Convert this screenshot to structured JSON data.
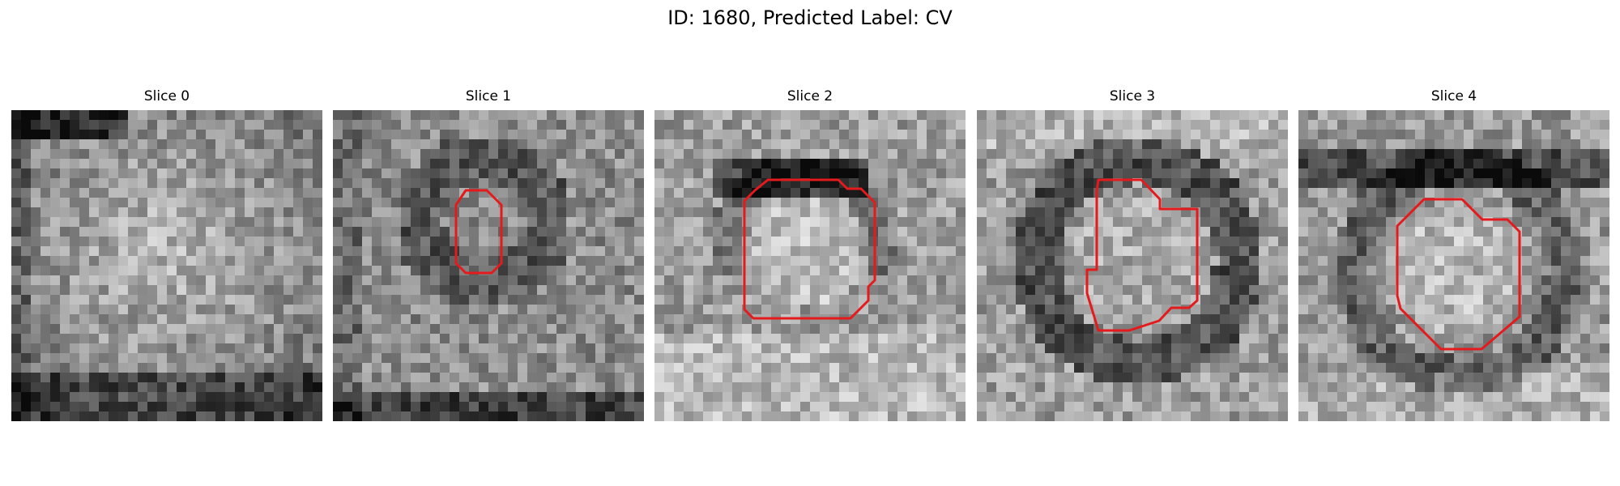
{
  "figure": {
    "title": "ID: 1680, Predicted Label: CV"
  },
  "panels": [
    {
      "title": "Slice 0",
      "has_contour": false
    },
    {
      "title": "Slice 1",
      "has_contour": true
    },
    {
      "title": "Slice 2",
      "has_contour": true
    },
    {
      "title": "Slice 3",
      "has_contour": true
    },
    {
      "title": "Slice 4",
      "has_contour": true
    }
  ],
  "colors": {
    "contour": "#e41a1c"
  }
}
